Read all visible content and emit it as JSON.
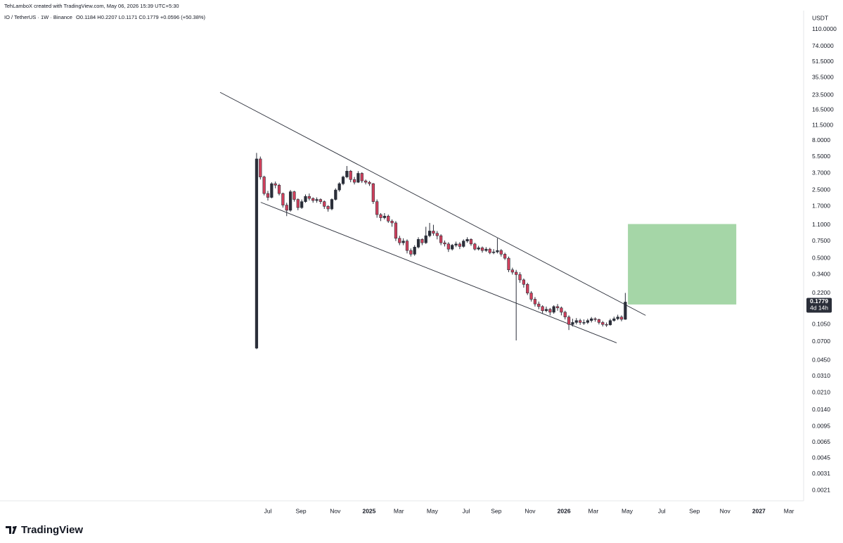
{
  "chart_data": {
    "type": "candlestick",
    "watermark": "TehLamboX created with TradingView.com, May 06, 2026 15:39 UTC+5:30",
    "title": "IO / TetherUS · 1W · Binance",
    "ohlc_text": "O0.1184  H0.2207  L0.1171  C0.1779  +0.0596 (+50.38%)",
    "y_unit": "USDT",
    "last_price_label": "0.1779",
    "countdown": "4d 14h",
    "brand": "TradingView",
    "log_scale": true,
    "grid": false,
    "ylim": [
      0.00164,
      172
    ],
    "yticks": [
      {
        "value": 110,
        "label": "110.0000"
      },
      {
        "value": 74,
        "label": "74.0000"
      },
      {
        "value": 51.5,
        "label": "51.5000"
      },
      {
        "value": 35.5,
        "label": "35.5000"
      },
      {
        "value": 23.5,
        "label": "23.5000"
      },
      {
        "value": 16.5,
        "label": "16.5000"
      },
      {
        "value": 11.5,
        "label": "11.5000"
      },
      {
        "value": 8,
        "label": "8.0000"
      },
      {
        "value": 5.5,
        "label": "5.5000"
      },
      {
        "value": 3.7,
        "label": "3.7000"
      },
      {
        "value": 2.5,
        "label": "2.5000"
      },
      {
        "value": 1.7,
        "label": "1.7000"
      },
      {
        "value": 1.1,
        "label": "1.1000"
      },
      {
        "value": 0.75,
        "label": "0.7500"
      },
      {
        "value": 0.5,
        "label": "0.5000"
      },
      {
        "value": 0.34,
        "label": "0.3400"
      },
      {
        "value": 0.22,
        "label": "0.2200"
      },
      {
        "value": 0.105,
        "label": "0.1050"
      },
      {
        "value": 0.07,
        "label": "0.0700"
      },
      {
        "value": 0.045,
        "label": "0.0450"
      },
      {
        "value": 0.031,
        "label": "0.0310"
      },
      {
        "value": 0.021,
        "label": "0.0210"
      },
      {
        "value": 0.014,
        "label": "0.0140"
      },
      {
        "value": 0.0095,
        "label": "0.0095"
      },
      {
        "value": 0.0065,
        "label": "0.0065"
      },
      {
        "value": 0.0045,
        "label": "0.0045"
      },
      {
        "value": 0.0031,
        "label": "0.0031"
      },
      {
        "value": 0.0021,
        "label": "0.0021"
      }
    ],
    "xlim": [
      -68.2,
      145.4
    ],
    "xticks": [
      {
        "value": 3.0,
        "label": "Jul"
      },
      {
        "value": 11.8,
        "label": "Sep"
      },
      {
        "value": 20.9,
        "label": "Nov"
      },
      {
        "value": 29.9,
        "label": "2025"
      },
      {
        "value": 37.8,
        "label": "Mar"
      },
      {
        "value": 46.7,
        "label": "May"
      },
      {
        "value": 55.7,
        "label": "Jul"
      },
      {
        "value": 63.7,
        "label": "Sep"
      },
      {
        "value": 72.7,
        "label": "Nov"
      },
      {
        "value": 81.7,
        "label": "2026"
      },
      {
        "value": 89.5,
        "label": "Mar"
      },
      {
        "value": 98.5,
        "label": "May"
      },
      {
        "value": 107.7,
        "label": "Jul"
      },
      {
        "value": 116.4,
        "label": "Sep"
      },
      {
        "value": 124.5,
        "label": "Nov"
      },
      {
        "value": 133.5,
        "label": "2027"
      },
      {
        "value": 141.5,
        "label": "Mar"
      }
    ],
    "up_color": "#2a2e39",
    "down_color": "#d2405c",
    "series": [
      {
        "open": [
          0.06,
          5.2,
          3.4,
          2.3,
          2.1,
          2.9,
          2.8,
          2.3,
          1.75,
          1.55,
          2.4,
          2.0,
          1.65,
          1.9,
          2.15,
          2.05,
          1.95,
          2.0,
          1.9,
          1.7,
          1.6,
          2.0,
          2.5,
          2.9,
          3.4,
          3.9,
          3.2,
          3.0,
          3.7,
          3.1,
          3.0,
          2.9,
          1.9,
          1.4,
          1.3,
          1.35,
          1.2,
          1.15,
          0.8,
          0.72,
          0.75,
          0.6,
          0.55,
          0.65,
          0.78,
          0.72,
          0.85,
          0.95,
          0.9,
          0.85,
          0.72,
          0.7,
          0.62,
          0.68,
          0.7,
          0.66,
          0.75,
          0.78,
          0.7,
          0.62,
          0.64,
          0.6,
          0.62,
          0.57,
          0.58,
          0.6,
          0.55,
          0.5,
          0.38,
          0.36,
          0.34,
          0.3,
          0.27,
          0.22,
          0.19,
          0.17,
          0.16,
          0.145,
          0.15,
          0.14,
          0.16,
          0.155,
          0.14,
          0.125,
          0.105,
          0.11,
          0.115,
          0.11,
          0.11,
          0.115,
          0.12,
          0.118,
          0.11,
          0.105,
          0.104,
          0.115,
          0.12,
          0.125,
          0.1184
        ],
        "high": [
          6.0,
          5.5,
          3.5,
          2.45,
          3.0,
          3.05,
          2.9,
          2.35,
          1.85,
          2.5,
          2.45,
          2.05,
          2.0,
          2.25,
          2.3,
          2.1,
          2.1,
          2.05,
          1.95,
          1.75,
          2.05,
          2.6,
          3.0,
          3.5,
          4.4,
          4.0,
          3.4,
          3.9,
          3.8,
          3.2,
          3.1,
          2.95,
          2.0,
          1.45,
          1.45,
          1.4,
          1.25,
          1.2,
          0.85,
          0.8,
          0.78,
          0.63,
          0.68,
          0.82,
          0.8,
          1.05,
          1.15,
          1.1,
          0.95,
          0.88,
          0.76,
          0.73,
          0.7,
          0.74,
          0.73,
          0.78,
          0.82,
          0.8,
          0.72,
          0.67,
          0.66,
          0.65,
          0.64,
          0.62,
          0.8,
          0.62,
          0.57,
          0.52,
          0.4,
          0.38,
          0.36,
          0.31,
          0.28,
          0.23,
          0.2,
          0.18,
          0.165,
          0.16,
          0.155,
          0.165,
          0.17,
          0.16,
          0.145,
          0.13,
          0.12,
          0.122,
          0.12,
          0.118,
          0.12,
          0.125,
          0.124,
          0.12,
          0.114,
          0.11,
          0.12,
          0.126,
          0.132,
          0.13,
          0.2207
        ],
        "low": [
          0.0586,
          3.2,
          2.2,
          1.95,
          2.05,
          2.6,
          2.2,
          1.65,
          1.35,
          1.5,
          1.9,
          1.55,
          1.6,
          1.85,
          1.95,
          1.85,
          1.85,
          1.8,
          1.6,
          1.5,
          1.55,
          1.95,
          2.4,
          2.8,
          3.3,
          3.0,
          2.85,
          2.95,
          2.95,
          2.85,
          2.75,
          1.8,
          1.3,
          1.2,
          1.25,
          1.15,
          1.05,
          0.75,
          0.68,
          0.68,
          0.56,
          0.52,
          0.53,
          0.63,
          0.68,
          0.7,
          0.82,
          0.85,
          0.78,
          0.68,
          0.66,
          0.58,
          0.6,
          0.65,
          0.62,
          0.64,
          0.72,
          0.67,
          0.6,
          0.6,
          0.57,
          0.58,
          0.55,
          0.55,
          0.56,
          0.52,
          0.48,
          0.36,
          0.34,
          0.072,
          0.28,
          0.25,
          0.21,
          0.18,
          0.16,
          0.15,
          0.135,
          0.14,
          0.13,
          0.135,
          0.145,
          0.13,
          0.118,
          0.092,
          0.1,
          0.105,
          0.104,
          0.104,
          0.106,
          0.11,
          0.112,
          0.105,
          0.1,
          0.099,
          0.102,
          0.112,
          0.116,
          0.113,
          0.1171
        ],
        "close": [
          5.2,
          3.4,
          2.3,
          2.1,
          2.9,
          2.8,
          2.3,
          1.75,
          1.55,
          2.4,
          2.0,
          1.65,
          1.9,
          2.15,
          2.05,
          1.95,
          2.0,
          1.9,
          1.7,
          1.6,
          2.0,
          2.5,
          2.9,
          3.4,
          3.9,
          3.2,
          3.0,
          3.7,
          3.1,
          3.0,
          2.9,
          1.9,
          1.4,
          1.3,
          1.35,
          1.2,
          1.15,
          0.8,
          0.72,
          0.75,
          0.6,
          0.55,
          0.65,
          0.78,
          0.72,
          0.85,
          0.95,
          0.9,
          0.85,
          0.72,
          0.7,
          0.62,
          0.68,
          0.7,
          0.66,
          0.75,
          0.78,
          0.7,
          0.62,
          0.64,
          0.6,
          0.62,
          0.57,
          0.58,
          0.6,
          0.55,
          0.5,
          0.38,
          0.36,
          0.34,
          0.3,
          0.27,
          0.22,
          0.19,
          0.17,
          0.16,
          0.145,
          0.15,
          0.14,
          0.16,
          0.155,
          0.14,
          0.125,
          0.105,
          0.11,
          0.115,
          0.11,
          0.11,
          0.115,
          0.12,
          0.118,
          0.11,
          0.105,
          0.104,
          0.115,
          0.12,
          0.125,
          0.1184,
          0.1779
        ]
      }
    ],
    "trendlines": [
      {
        "x": [
          -9.7,
          103.4
        ],
        "y": [
          25,
          0.13
        ]
      },
      {
        "x": [
          1.1,
          95.7
        ],
        "y": [
          1.87,
          0.068
        ]
      }
    ],
    "target_zone": {
      "x": [
        98.7,
        127.5
      ],
      "y": [
        0.168,
        1.12
      ],
      "color": "#a5d6a7"
    }
  }
}
